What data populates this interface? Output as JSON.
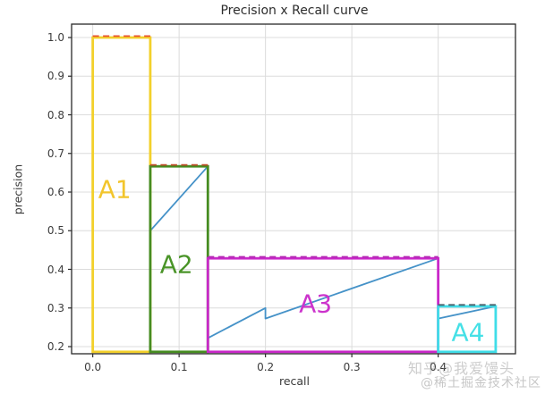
{
  "figure": {
    "title": "Precision x Recall curve",
    "xlabel": "recall",
    "ylabel": "precision"
  },
  "watermark": {
    "line1": "知乎@我爱馒头",
    "line2": "@稀土掘金技术社区"
  },
  "chart_data": {
    "type": "line",
    "title": "Precision x Recall curve",
    "xlabel": "recall",
    "ylabel": "precision",
    "xlim": [
      -0.0245,
      0.4895
    ],
    "ylim": [
      0.1815,
      1.0347
    ],
    "xticks": [
      0.0,
      0.1,
      0.2,
      0.3,
      0.4
    ],
    "yticks": [
      0.2,
      0.3,
      0.4,
      0.5,
      0.6,
      0.7,
      0.8,
      0.9,
      1.0
    ],
    "grid": true,
    "grid_color": "#dcdcdc",
    "frame_color": "#2a2a2a",
    "pr_curve": {
      "name": "precision-x-recall-raw-curve",
      "color": "#4592c8",
      "points": [
        [
          0.0666,
          1.0
        ],
        [
          0.0666,
          0.5
        ],
        [
          0.1333,
          0.6666
        ],
        [
          0.1333,
          0.2222
        ],
        [
          0.2,
          0.3
        ],
        [
          0.2,
          0.2727
        ],
        [
          0.4,
          0.4285
        ],
        [
          0.4,
          0.2727
        ],
        [
          0.4666,
          0.3043
        ]
      ]
    },
    "interpolated_precision_segments": [
      {
        "x0": 0.0,
        "x1": 0.0666,
        "precision": 1.0,
        "color": "#e8502d"
      },
      {
        "x0": 0.0666,
        "x1": 0.1333,
        "precision": 0.6666,
        "color": "#bf4a28"
      },
      {
        "x0": 0.1333,
        "x1": 0.4,
        "precision": 0.4285,
        "color": "#b327b3"
      },
      {
        "x0": 0.4,
        "x1": 0.4666,
        "precision": 0.3043,
        "color": "#46616c"
      }
    ],
    "areas": [
      {
        "label": "A1",
        "x0": 0.0,
        "x1": 0.0666,
        "y0": 0.1865,
        "y1": 1.0,
        "color": "#f3d02b",
        "label_color": "#f2c52c",
        "label_at": [
          0.0255,
          0.607
        ]
      },
      {
        "label": "A2",
        "x0": 0.0666,
        "x1": 0.1333,
        "y0": 0.1865,
        "y1": 0.6666,
        "color": "#468c21",
        "label_color": "#4a9428",
        "label_at": [
          0.097,
          0.412
        ]
      },
      {
        "label": "A3",
        "x0": 0.1333,
        "x1": 0.4,
        "y0": 0.1865,
        "y1": 0.4285,
        "color": "#c928c9",
        "label_color": "#cc33cc",
        "label_at": [
          0.258,
          0.312
        ]
      },
      {
        "label": "A4",
        "x0": 0.4,
        "x1": 0.4666,
        "y0": 0.1865,
        "y1": 0.3043,
        "color": "#3fdde8",
        "label_color": "#45e0e6",
        "label_at": [
          0.4345,
          0.2375
        ]
      }
    ]
  }
}
